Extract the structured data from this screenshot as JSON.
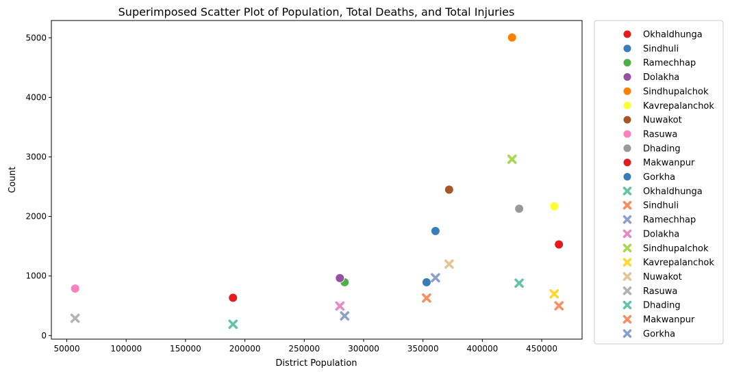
{
  "chart_data": {
    "type": "scatter",
    "title": "Superimposed Scatter Plot of Population, Total Deaths, and Total Injuries",
    "xlabel": "District Population",
    "ylabel": "Count",
    "xlim": [
      37000,
      484000
    ],
    "ylim": [
      -60,
      5290
    ],
    "xticks": [
      50000,
      100000,
      150000,
      200000,
      250000,
      300000,
      350000,
      400000,
      450000
    ],
    "yticks": [
      0,
      1000,
      2000,
      3000,
      4000,
      5000
    ],
    "grid": false,
    "legend_position": "outside-right",
    "series": [
      {
        "name": "Okhaldhunga",
        "marker": "circle",
        "color": "#e41a1c",
        "x": 190000,
        "y": 635
      },
      {
        "name": "Sindhuli",
        "marker": "circle",
        "color": "#377eb8",
        "x": 353000,
        "y": 895
      },
      {
        "name": "Ramechhap",
        "marker": "circle",
        "color": "#4daf4a",
        "x": 284000,
        "y": 895
      },
      {
        "name": "Dolakha",
        "marker": "circle",
        "color": "#984ea3",
        "x": 280000,
        "y": 965
      },
      {
        "name": "Sindhupalchok",
        "marker": "circle",
        "color": "#ff7f00",
        "x": 425000,
        "y": 5005
      },
      {
        "name": "Kavrepalanchok",
        "marker": "circle",
        "color": "#ffff33",
        "x": 460500,
        "y": 2170
      },
      {
        "name": "Nuwakot",
        "marker": "circle",
        "color": "#a65628",
        "x": 372000,
        "y": 2450
      },
      {
        "name": "Rasuwa",
        "marker": "circle",
        "color": "#f781bf",
        "x": 57000,
        "y": 790
      },
      {
        "name": "Dhading",
        "marker": "circle",
        "color": "#999999",
        "x": 431000,
        "y": 2130
      },
      {
        "name": "Makwanpur",
        "marker": "circle",
        "color": "#e41a1c",
        "x": 464500,
        "y": 1530
      },
      {
        "name": "Gorkha",
        "marker": "circle",
        "color": "#377eb8",
        "x": 360500,
        "y": 1755
      },
      {
        "name": "Okhaldhunga",
        "marker": "x",
        "color": "#66c2a5",
        "x": 190000,
        "y": 190
      },
      {
        "name": "Sindhuli",
        "marker": "x",
        "color": "#fc8d62",
        "x": 353000,
        "y": 630
      },
      {
        "name": "Ramechhap",
        "marker": "x",
        "color": "#8da0cb",
        "x": 284000,
        "y": 330
      },
      {
        "name": "Dolakha",
        "marker": "x",
        "color": "#e78ac3",
        "x": 280000,
        "y": 495
      },
      {
        "name": "Sindhupalchok",
        "marker": "x",
        "color": "#a6d854",
        "x": 425000,
        "y": 2960
      },
      {
        "name": "Kavrepalanchok",
        "marker": "x",
        "color": "#ffd92f",
        "x": 460500,
        "y": 700
      },
      {
        "name": "Nuwakot",
        "marker": "x",
        "color": "#e5c494",
        "x": 372000,
        "y": 1200
      },
      {
        "name": "Rasuwa",
        "marker": "x",
        "color": "#b3b3b3",
        "x": 57000,
        "y": 290
      },
      {
        "name": "Dhading",
        "marker": "x",
        "color": "#66c2a5",
        "x": 431000,
        "y": 880
      },
      {
        "name": "Makwanpur",
        "marker": "x",
        "color": "#fc8d62",
        "x": 464500,
        "y": 500
      },
      {
        "name": "Gorkha",
        "marker": "x",
        "color": "#8da0cb",
        "x": 360500,
        "y": 970
      }
    ]
  }
}
